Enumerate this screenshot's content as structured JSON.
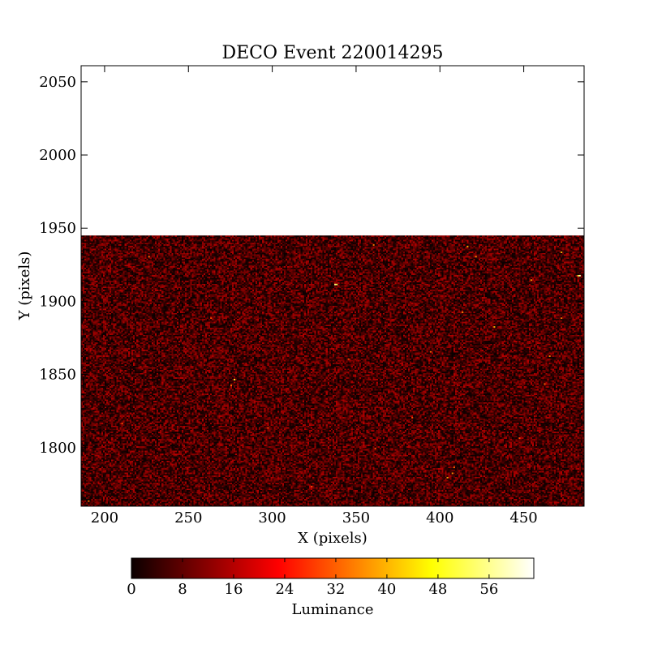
{
  "chart_data": {
    "type": "heatmap",
    "title": "DECO Event 220014295",
    "xlabel": "X (pixels)",
    "ylabel": "Y (pixels)",
    "xlim": [
      186,
      486
    ],
    "ylim": [
      1760,
      2061
    ],
    "data_extent": {
      "x": [
        186,
        486
      ],
      "y": [
        1760,
        1945
      ]
    },
    "x_ticks": [
      200,
      250,
      300,
      350,
      400,
      450
    ],
    "y_ticks": [
      1800,
      1850,
      1900,
      1950,
      2000,
      2050
    ],
    "colormap": "hot",
    "grid": false,
    "colorbar": {
      "label": "Luminance",
      "orientation": "horizontal",
      "placement": "bottom",
      "range": [
        0,
        63
      ],
      "ticks": [
        0,
        8,
        16,
        24,
        32,
        40,
        48,
        56
      ]
    },
    "background_luminance": [
      0,
      16
    ],
    "hot_pixels": [
      {
        "x": 337,
        "y": 1911,
        "v": 55
      },
      {
        "x": 338,
        "y": 1911,
        "v": 52
      },
      {
        "x": 482,
        "y": 1917,
        "v": 50
      },
      {
        "x": 483,
        "y": 1917,
        "v": 58
      },
      {
        "x": 277,
        "y": 1846,
        "v": 50
      },
      {
        "x": 275,
        "y": 1842,
        "v": 34
      },
      {
        "x": 432,
        "y": 1882,
        "v": 40
      },
      {
        "x": 454,
        "y": 1914,
        "v": 38
      },
      {
        "x": 465,
        "y": 1862,
        "v": 35
      },
      {
        "x": 421,
        "y": 1930,
        "v": 36
      },
      {
        "x": 416,
        "y": 1937,
        "v": 40
      },
      {
        "x": 394,
        "y": 1865,
        "v": 32
      },
      {
        "x": 360,
        "y": 1938,
        "v": 34
      },
      {
        "x": 407,
        "y": 1782,
        "v": 36
      },
      {
        "x": 408,
        "y": 1786,
        "v": 33
      },
      {
        "x": 404,
        "y": 1779,
        "v": 38
      },
      {
        "x": 472,
        "y": 1888,
        "v": 34
      },
      {
        "x": 413,
        "y": 1892,
        "v": 36
      },
      {
        "x": 383,
        "y": 1820,
        "v": 30
      },
      {
        "x": 226,
        "y": 1930,
        "v": 33
      },
      {
        "x": 297,
        "y": 1813,
        "v": 30
      },
      {
        "x": 210,
        "y": 1816,
        "v": 30
      },
      {
        "x": 472,
        "y": 1933,
        "v": 40
      },
      {
        "x": 190,
        "y": 1763,
        "v": 34
      },
      {
        "x": 323,
        "y": 1773,
        "v": 30
      },
      {
        "x": 462,
        "y": 1843,
        "v": 32
      },
      {
        "x": 361,
        "y": 1799,
        "v": 30
      },
      {
        "x": 447,
        "y": 1806,
        "v": 30
      },
      {
        "x": 263,
        "y": 1888,
        "v": 30
      },
      {
        "x": 345,
        "y": 1860,
        "v": 30
      }
    ]
  }
}
